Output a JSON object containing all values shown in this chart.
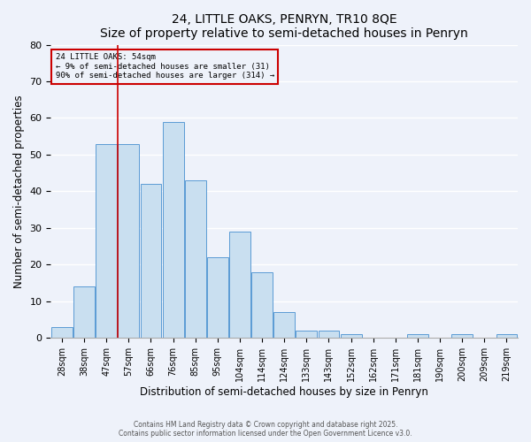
{
  "title": "24, LITTLE OAKS, PENRYN, TR10 8QE",
  "subtitle": "Size of property relative to semi-detached houses in Penryn",
  "xlabel": "Distribution of semi-detached houses by size in Penryn",
  "ylabel": "Number of semi-detached properties",
  "bar_labels": [
    "28sqm",
    "38sqm",
    "47sqm",
    "57sqm",
    "66sqm",
    "76sqm",
    "85sqm",
    "95sqm",
    "104sqm",
    "114sqm",
    "124sqm",
    "133sqm",
    "143sqm",
    "152sqm",
    "162sqm",
    "171sqm",
    "181sqm",
    "190sqm",
    "200sqm",
    "209sqm",
    "219sqm"
  ],
  "bar_values": [
    3,
    14,
    53,
    53,
    42,
    59,
    43,
    22,
    29,
    18,
    7,
    2,
    2,
    1,
    0,
    0,
    1,
    0,
    1,
    0,
    1
  ],
  "bar_color": "#c9dff0",
  "bar_edge_color": "#5b9bd5",
  "ylim": [
    0,
    80
  ],
  "yticks": [
    0,
    10,
    20,
    30,
    40,
    50,
    60,
    70,
    80
  ],
  "property_line_label": "57sqm",
  "property_line_color": "#cc0000",
  "annotation_title": "24 LITTLE OAKS: 54sqm",
  "annotation_line1": "← 9% of semi-detached houses are smaller (31)",
  "annotation_line2": "90% of semi-detached houses are larger (314) →",
  "annotation_box_color": "#cc0000",
  "background_color": "#eef2fa",
  "grid_color": "#ffffff",
  "footer1": "Contains HM Land Registry data © Crown copyright and database right 2025.",
  "footer2": "Contains public sector information licensed under the Open Government Licence v3.0."
}
